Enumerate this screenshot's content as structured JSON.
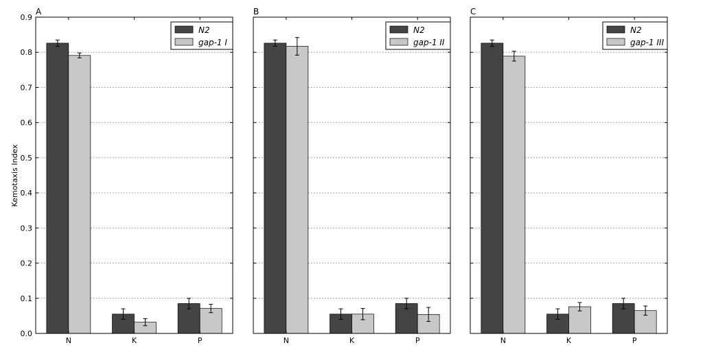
{
  "figure": {
    "ylabel": "Kemotaxis Index",
    "colors": {
      "n2": "#444444",
      "mutant": "#c8c8c8",
      "grid": "#888888",
      "axis": "#000000"
    }
  },
  "chart_data": [
    {
      "type": "bar",
      "panel_label": "A",
      "categories": [
        "N",
        "K",
        "P"
      ],
      "series": [
        {
          "name": "N2",
          "values": [
            0.826,
            0.055,
            0.085
          ],
          "errors": [
            0.009,
            0.015,
            0.015
          ]
        },
        {
          "name": "gap-1 I",
          "values": [
            0.791,
            0.032,
            0.071
          ],
          "errors": [
            0.007,
            0.01,
            0.012
          ]
        }
      ],
      "ylabel": "Kemotaxis Index",
      "ylim": [
        0.0,
        0.9
      ],
      "yticks": [
        "0.0",
        "0.1",
        "0.2",
        "0.3",
        "0.4",
        "0.5",
        "0.6",
        "0.7",
        "0.8",
        "0.9"
      ],
      "grid": "horizontal dotted",
      "legend_position": "top-right"
    },
    {
      "type": "bar",
      "panel_label": "B",
      "categories": [
        "N",
        "K",
        "P"
      ],
      "series": [
        {
          "name": "N2",
          "values": [
            0.826,
            0.055,
            0.085
          ],
          "errors": [
            0.009,
            0.015,
            0.015
          ]
        },
        {
          "name": "gap-1 II",
          "values": [
            0.817,
            0.055,
            0.054
          ],
          "errors": [
            0.025,
            0.016,
            0.02
          ]
        }
      ],
      "ylim": [
        0.0,
        0.9
      ],
      "grid": "horizontal dotted",
      "legend_position": "top-right"
    },
    {
      "type": "bar",
      "panel_label": "C",
      "categories": [
        "N",
        "K",
        "P"
      ],
      "series": [
        {
          "name": "N2",
          "values": [
            0.826,
            0.055,
            0.085
          ],
          "errors": [
            0.009,
            0.015,
            0.015
          ]
        },
        {
          "name": "gap-1 III",
          "values": [
            0.789,
            0.076,
            0.065
          ],
          "errors": [
            0.014,
            0.012,
            0.013
          ]
        }
      ],
      "ylim": [
        0.0,
        0.9
      ],
      "grid": "horizontal dotted",
      "legend_position": "top-right"
    }
  ]
}
